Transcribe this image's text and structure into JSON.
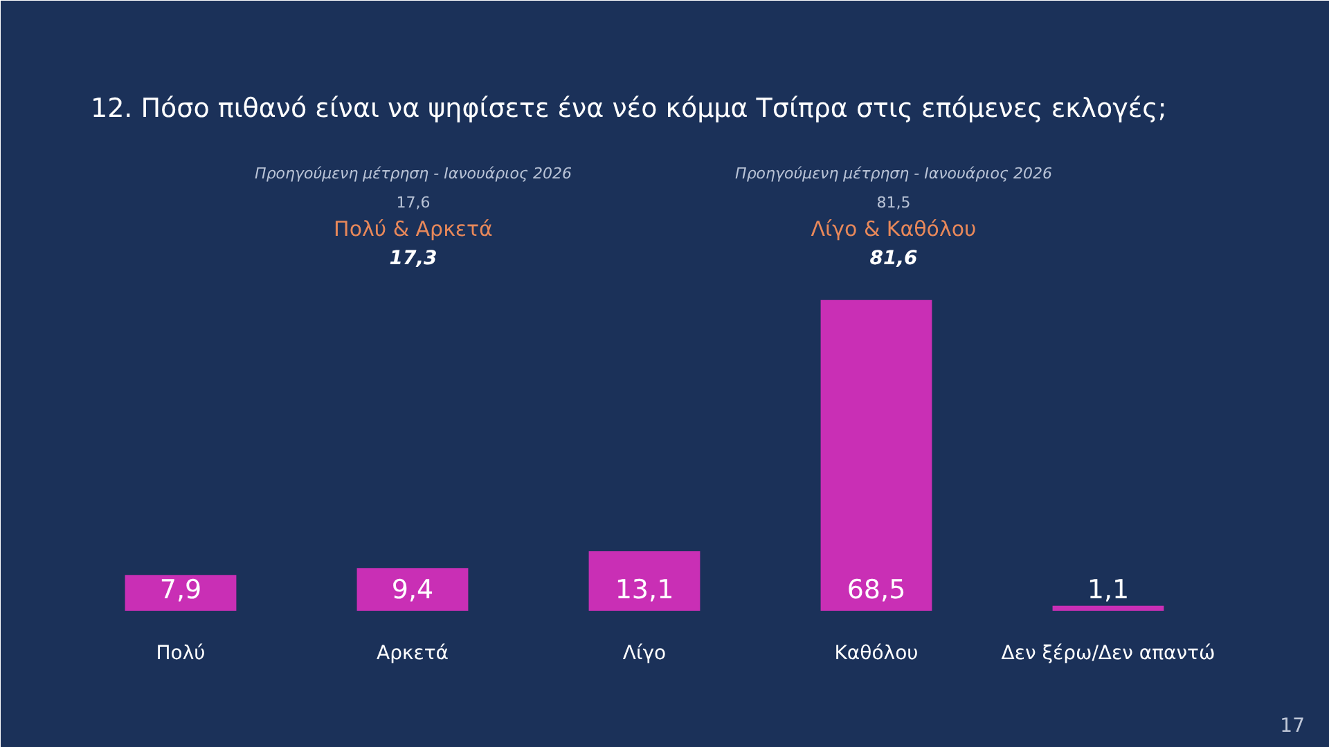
{
  "chart_data": {
    "type": "bar",
    "title": "12. Πόσο πιθανό είναι να ψηφίσετε ένα νέο κόμμα Τσίπρα στις επόμενες εκλογές;",
    "categories": [
      "Πολύ",
      "Αρκετά",
      "Λίγο",
      "Καθόλου",
      "Δεν ξέρω/Δεν απαντώ"
    ],
    "values": [
      7.9,
      9.4,
      13.1,
      68.5,
      1.1
    ],
    "value_labels": [
      "7,9",
      "9,4",
      "13,1",
      "68,5",
      "1,1"
    ],
    "color": "#c92fb5",
    "annotations": [
      "Προηγούμενη μέτρηση - Ιανουάριος 2026",
      "17,6",
      "Πολύ & Αρκετά",
      "17,3",
      "Προηγούμενη μέτρηση - Ιανουάριος 2026",
      "81,5",
      "Λίγο & Καθόλου",
      "81,6",
      "17"
    ]
  }
}
